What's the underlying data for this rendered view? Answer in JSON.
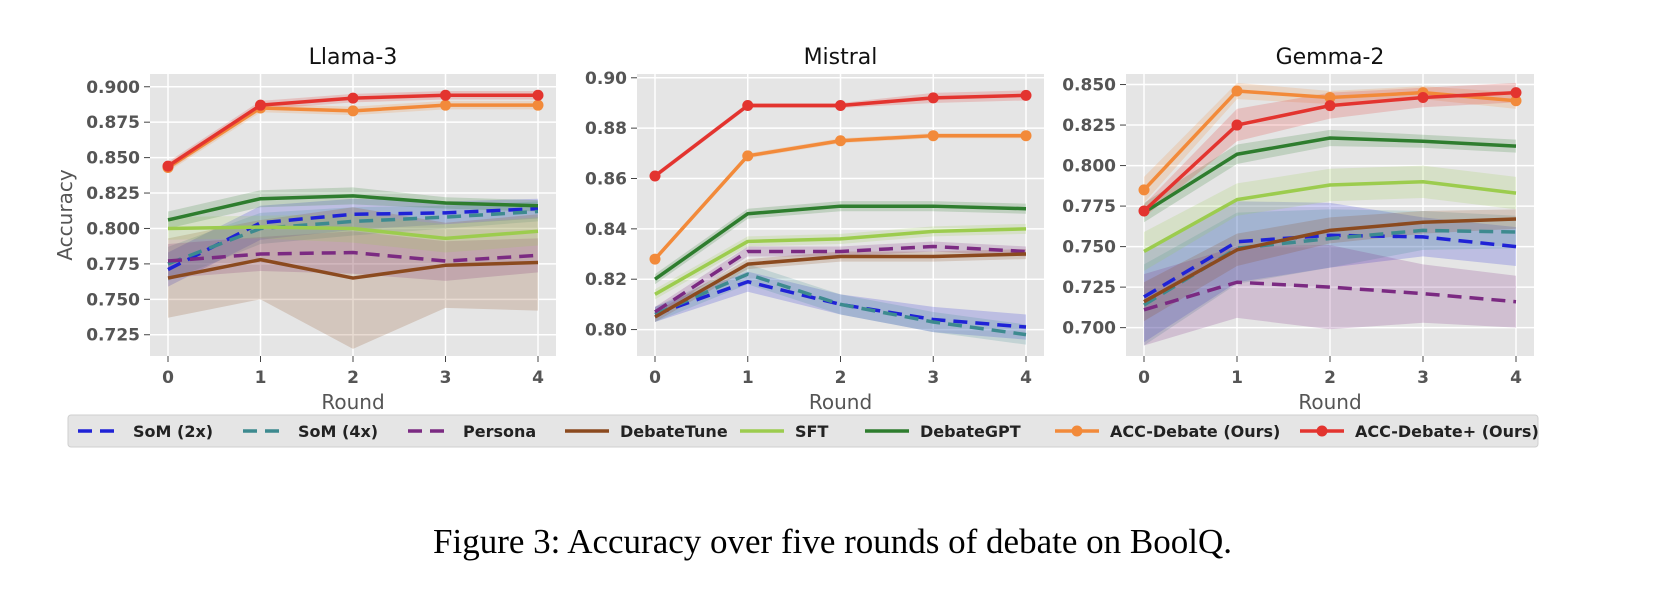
{
  "caption": "Figure 3: Accuracy over five rounds of debate on BoolQ.",
  "legend_items": [
    {
      "key": "som2",
      "label": "SoM (2x)",
      "color": "#1f22d6",
      "dash": "dash",
      "marker": false
    },
    {
      "key": "som4",
      "label": "SoM (4x)",
      "color": "#3d8a8f",
      "dash": "dash",
      "marker": false
    },
    {
      "key": "persona",
      "label": "Persona",
      "color": "#7b2a82",
      "dash": "dash",
      "marker": false
    },
    {
      "key": "debatetune",
      "label": "DebateTune",
      "color": "#8b4a1f",
      "dash": "solid",
      "marker": false
    },
    {
      "key": "sft",
      "label": "SFT",
      "color": "#9ccc4e",
      "dash": "solid",
      "marker": false
    },
    {
      "key": "debategpt",
      "label": "DebateGPT",
      "color": "#2e7d2e",
      "dash": "solid",
      "marker": false
    },
    {
      "key": "acc",
      "label": "ACC-Debate (Ours)",
      "color": "#f28a3a",
      "dash": "solid",
      "marker": true
    },
    {
      "key": "accplus",
      "label": "ACC-Debate+ (Ours)",
      "color": "#e3342f",
      "dash": "solid",
      "marker": true
    }
  ],
  "chart_data": [
    {
      "type": "line",
      "title": "Llama-3",
      "xlabel": "Round",
      "ylabel": "Accuracy",
      "x": [
        0,
        1,
        2,
        3,
        4
      ],
      "xticks": [
        "0",
        "1",
        "2",
        "3",
        "4"
      ],
      "ylim": [
        0.71,
        0.909
      ],
      "yticks": [
        0.725,
        0.75,
        0.775,
        0.8,
        0.825,
        0.85,
        0.875,
        0.9
      ],
      "ytick_labels": [
        "0.725",
        "0.750",
        "0.775",
        "0.800",
        "0.825",
        "0.850",
        "0.875",
        "0.900"
      ],
      "grid": true,
      "series": [
        {
          "key": "som2",
          "values": [
            0.771,
            0.804,
            0.81,
            0.811,
            0.814
          ],
          "band": [
            0.012,
            0.012,
            0.011,
            0.008,
            0.007
          ]
        },
        {
          "key": "som4",
          "values": [
            0.775,
            0.8,
            0.805,
            0.808,
            0.812
          ],
          "band": [
            0.012,
            0.011,
            0.01,
            0.008,
            0.007
          ]
        },
        {
          "key": "persona",
          "values": [
            0.777,
            0.782,
            0.783,
            0.777,
            0.781
          ],
          "band": [
            0.012,
            0.012,
            0.015,
            0.014,
            0.012
          ]
        },
        {
          "key": "debatetune",
          "values": [
            0.765,
            0.778,
            0.765,
            0.774,
            0.776
          ],
          "band": [
            0.028,
            0.028,
            0.05,
            0.03,
            0.034
          ]
        },
        {
          "key": "sft",
          "values": [
            0.8,
            0.801,
            0.8,
            0.793,
            0.798
          ],
          "band": [
            0.008,
            0.008,
            0.01,
            0.01,
            0.01
          ]
        },
        {
          "key": "debategpt",
          "values": [
            0.806,
            0.821,
            0.823,
            0.818,
            0.816
          ],
          "band": [
            0.006,
            0.006,
            0.006,
            0.004,
            0.004
          ]
        },
        {
          "key": "acc",
          "values": [
            0.843,
            0.885,
            0.883,
            0.887,
            0.887
          ],
          "band": [
            0.003,
            0.003,
            0.003,
            0.003,
            0.003
          ]
        },
        {
          "key": "accplus",
          "values": [
            0.844,
            0.887,
            0.892,
            0.894,
            0.894
          ],
          "band": [
            0.003,
            0.003,
            0.003,
            0.003,
            0.003
          ]
        }
      ]
    },
    {
      "type": "line",
      "title": "Mistral",
      "xlabel": "Round",
      "ylabel": "",
      "x": [
        0,
        1,
        2,
        3,
        4
      ],
      "xticks": [
        "0",
        "1",
        "2",
        "3",
        "4"
      ],
      "ylim": [
        0.7895,
        0.9015
      ],
      "yticks": [
        0.8,
        0.82,
        0.84,
        0.86,
        0.88,
        0.9
      ],
      "ytick_labels": [
        "0.80",
        "0.82",
        "0.84",
        "0.86",
        "0.88",
        "0.90"
      ],
      "grid": true,
      "series": [
        {
          "key": "som2",
          "values": [
            0.806,
            0.819,
            0.81,
            0.804,
            0.801
          ],
          "band": [
            0.003,
            0.004,
            0.004,
            0.005,
            0.005
          ]
        },
        {
          "key": "som4",
          "values": [
            0.806,
            0.822,
            0.81,
            0.803,
            0.798
          ],
          "band": [
            0.003,
            0.004,
            0.004,
            0.004,
            0.004
          ]
        },
        {
          "key": "persona",
          "values": [
            0.807,
            0.831,
            0.831,
            0.833,
            0.831
          ],
          "band": [
            0.002,
            0.002,
            0.002,
            0.002,
            0.002
          ]
        },
        {
          "key": "debatetune",
          "values": [
            0.805,
            0.826,
            0.829,
            0.829,
            0.83
          ],
          "band": [
            0.002,
            0.002,
            0.002,
            0.002,
            0.002
          ]
        },
        {
          "key": "sft",
          "values": [
            0.814,
            0.835,
            0.836,
            0.839,
            0.84
          ],
          "band": [
            0.002,
            0.002,
            0.002,
            0.002,
            0.002
          ]
        },
        {
          "key": "debategpt",
          "values": [
            0.82,
            0.846,
            0.849,
            0.849,
            0.848
          ],
          "band": [
            0.002,
            0.002,
            0.002,
            0.002,
            0.002
          ]
        },
        {
          "key": "acc",
          "values": [
            0.828,
            0.869,
            0.875,
            0.877,
            0.877
          ],
          "band": [
            0.001,
            0.001,
            0.001,
            0.001,
            0.001
          ]
        },
        {
          "key": "accplus",
          "values": [
            0.861,
            0.889,
            0.889,
            0.892,
            0.893
          ],
          "band": [
            0.001,
            0.001,
            0.001,
            0.002,
            0.002
          ]
        }
      ]
    },
    {
      "type": "line",
      "title": "Gemma-2",
      "xlabel": "Round",
      "ylabel": "",
      "x": [
        0,
        1,
        2,
        3,
        4
      ],
      "xticks": [
        "0",
        "1",
        "2",
        "3",
        "4"
      ],
      "ylim": [
        0.6825,
        0.8565
      ],
      "yticks": [
        0.7,
        0.725,
        0.75,
        0.775,
        0.8,
        0.825,
        0.85
      ],
      "ytick_labels": [
        "0.700",
        "0.725",
        "0.750",
        "0.775",
        "0.800",
        "0.825",
        "0.850"
      ],
      "grid": true,
      "series": [
        {
          "key": "som2",
          "values": [
            0.719,
            0.753,
            0.757,
            0.756,
            0.75
          ],
          "band": [
            0.028,
            0.025,
            0.02,
            0.012,
            0.012
          ]
        },
        {
          "key": "som4",
          "values": [
            0.714,
            0.749,
            0.755,
            0.76,
            0.759
          ],
          "band": [
            0.025,
            0.022,
            0.018,
            0.012,
            0.01
          ]
        },
        {
          "key": "persona",
          "values": [
            0.711,
            0.728,
            0.725,
            0.721,
            0.716
          ],
          "band": [
            0.022,
            0.022,
            0.026,
            0.018,
            0.016
          ]
        },
        {
          "key": "debatetune",
          "values": [
            0.716,
            0.748,
            0.76,
            0.765,
            0.767
          ],
          "band": [
            0.012,
            0.01,
            0.008,
            0.007,
            0.006
          ]
        },
        {
          "key": "sft",
          "values": [
            0.747,
            0.779,
            0.788,
            0.79,
            0.783
          ],
          "band": [
            0.012,
            0.01,
            0.01,
            0.01,
            0.01
          ]
        },
        {
          "key": "debategpt",
          "values": [
            0.771,
            0.807,
            0.817,
            0.815,
            0.812
          ],
          "band": [
            0.006,
            0.006,
            0.005,
            0.004,
            0.004
          ]
        },
        {
          "key": "acc",
          "values": [
            0.785,
            0.846,
            0.842,
            0.845,
            0.84
          ],
          "band": [
            0.008,
            0.005,
            0.004,
            0.004,
            0.005
          ]
        },
        {
          "key": "accplus",
          "values": [
            0.772,
            0.825,
            0.837,
            0.842,
            0.845
          ],
          "band": [
            0.004,
            0.01,
            0.008,
            0.006,
            0.006
          ]
        }
      ]
    }
  ]
}
